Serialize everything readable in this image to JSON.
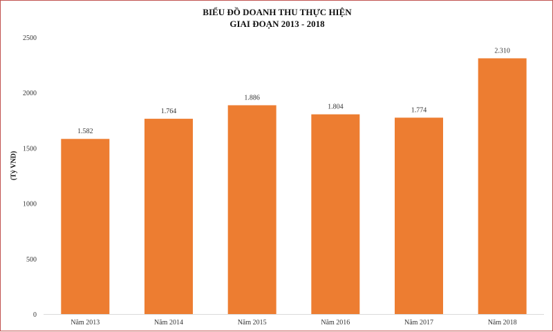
{
  "chart_data": {
    "type": "bar",
    "title_lines": [
      "BIỂU ĐỒ DOANH THU THỰC HIỆN",
      "GIAI ĐOẠN 2013 - 2018"
    ],
    "ylabel": "(Tỷ VND)",
    "xlabel": "",
    "categories": [
      "Năm 2013",
      "Năm 2014",
      "Năm 2015",
      "Năm 2016",
      "Năm 2017",
      "Năm 2018"
    ],
    "values": [
      1582,
      1764,
      1886,
      1804,
      1774,
      2310
    ],
    "data_labels": [
      "1.582",
      "1.764",
      "1.886",
      "1.804",
      "1.774",
      "2.310"
    ],
    "ylim": [
      0,
      2500
    ],
    "yticks": [
      0,
      500,
      1000,
      1500,
      2000,
      2500
    ],
    "grid": false,
    "legend": "none",
    "bar_color": "#ed7d31"
  }
}
